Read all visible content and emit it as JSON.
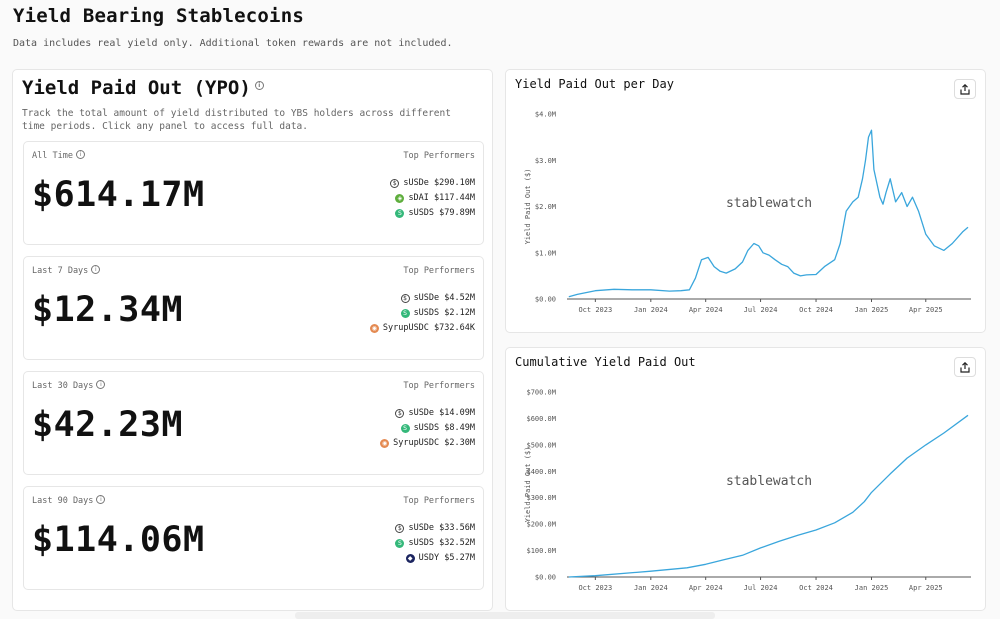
{
  "page": {
    "title": "Yield Bearing Stablecoins",
    "subtitle": "Data includes real yield only. Additional token rewards are not included."
  },
  "ypo": {
    "title": "Yield Paid Out (YPO)",
    "description": "Track the total amount of yield distributed to YBS holders across different time periods. Click any panel to access full data.",
    "info_glyph": "i",
    "top_label": "Top Performers",
    "panels": [
      {
        "label": "All Time",
        "value": "$614.17M",
        "performers": [
          {
            "name": "sUSDe",
            "amount": "$290.10M",
            "icon": "susde",
            "glyph": "$"
          },
          {
            "name": "sDAI",
            "amount": "$117.44M",
            "icon": "sdai",
            "glyph": "◈"
          },
          {
            "name": "sUSDS",
            "amount": "$79.89M",
            "icon": "susds",
            "glyph": "S"
          }
        ]
      },
      {
        "label": "Last 7 Days",
        "value": "$12.34M",
        "performers": [
          {
            "name": "sUSDe",
            "amount": "$4.52M",
            "icon": "susde",
            "glyph": "$"
          },
          {
            "name": "sUSDS",
            "amount": "$2.12M",
            "icon": "susds",
            "glyph": "S"
          },
          {
            "name": "SyrupUSDC",
            "amount": "$732.64K",
            "icon": "syrup",
            "glyph": "◉"
          }
        ]
      },
      {
        "label": "Last 30 Days",
        "value": "$42.23M",
        "performers": [
          {
            "name": "sUSDe",
            "amount": "$14.09M",
            "icon": "susde",
            "glyph": "$"
          },
          {
            "name": "sUSDS",
            "amount": "$8.49M",
            "icon": "susds",
            "glyph": "S"
          },
          {
            "name": "SyrupUSDC",
            "amount": "$2.30M",
            "icon": "syrup",
            "glyph": "◉"
          }
        ]
      },
      {
        "label": "Last 90 Days",
        "value": "$114.06M",
        "performers": [
          {
            "name": "sUSDe",
            "amount": "$33.56M",
            "icon": "susde",
            "glyph": "$"
          },
          {
            "name": "sUSDS",
            "amount": "$32.52M",
            "icon": "susds",
            "glyph": "S"
          },
          {
            "name": "USDY",
            "amount": "$5.27M",
            "icon": "usdy",
            "glyph": "◆"
          }
        ]
      }
    ]
  },
  "colors": {
    "line": "#3aa6dc",
    "susde": "#444444",
    "sdai": "#5fae3d",
    "susds": "#34b87a",
    "syrup": "#e48a52",
    "usdy": "#1c2560"
  },
  "icons": {
    "share": "share-icon",
    "info": "info-icon"
  },
  "chart_data": [
    {
      "type": "line",
      "title": "Yield Paid Out per Day",
      "ylabel": "Yield Paid Out ($)",
      "watermark": "stablewatch",
      "ylim": [
        0,
        4000000
      ],
      "y_ticks": [
        0,
        1000000,
        2000000,
        3000000,
        4000000
      ],
      "y_tick_labels": [
        "$0.00",
        "$1.0M",
        "$2.0M",
        "$3.0M",
        "$4.0M"
      ],
      "xlim": [
        "2023-08-15",
        "2025-06-15"
      ],
      "x_ticks": [
        "2023-10-01",
        "2024-01-01",
        "2024-04-01",
        "2024-07-01",
        "2024-10-01",
        "2025-01-01",
        "2025-04-01"
      ],
      "x_tick_labels": [
        "Oct 2023",
        "Jan 2024",
        "Apr 2024",
        "Jul 2024",
        "Oct 2024",
        "Jan 2025",
        "Apr 2025"
      ],
      "grid": false,
      "series": [
        {
          "x": [
            "2023-08-18",
            "2023-09-01",
            "2023-10-01",
            "2023-11-01",
            "2023-12-01",
            "2024-01-01",
            "2024-02-01",
            "2024-02-20",
            "2024-03-05",
            "2024-03-15",
            "2024-03-25",
            "2024-04-05",
            "2024-04-15",
            "2024-04-25",
            "2024-05-05",
            "2024-05-20",
            "2024-06-01",
            "2024-06-10",
            "2024-06-20",
            "2024-06-28",
            "2024-07-05",
            "2024-07-15",
            "2024-07-25",
            "2024-08-05",
            "2024-08-15",
            "2024-08-25",
            "2024-09-05",
            "2024-09-15",
            "2024-10-01",
            "2024-10-15",
            "2024-11-01",
            "2024-11-10",
            "2024-11-20",
            "2024-12-01",
            "2024-12-10",
            "2024-12-17",
            "2024-12-22",
            "2024-12-27",
            "2025-01-01",
            "2025-01-05",
            "2025-01-10",
            "2025-01-15",
            "2025-01-20",
            "2025-01-25",
            "2025-02-01",
            "2025-02-10",
            "2025-02-20",
            "2025-03-01",
            "2025-03-10",
            "2025-03-20",
            "2025-04-01",
            "2025-04-15",
            "2025-05-01",
            "2025-05-15",
            "2025-06-01",
            "2025-06-10"
          ],
          "y": [
            50000,
            100000,
            180000,
            210000,
            200000,
            200000,
            170000,
            180000,
            200000,
            450000,
            850000,
            900000,
            700000,
            600000,
            560000,
            650000,
            800000,
            1050000,
            1200000,
            1150000,
            1000000,
            950000,
            850000,
            750000,
            700000,
            560000,
            500000,
            520000,
            530000,
            700000,
            850000,
            1200000,
            1900000,
            2100000,
            2200000,
            2600000,
            3000000,
            3500000,
            3650000,
            2800000,
            2500000,
            2200000,
            2050000,
            2300000,
            2600000,
            2100000,
            2300000,
            2000000,
            2200000,
            1900000,
            1400000,
            1150000,
            1050000,
            1200000,
            1450000,
            1550000
          ]
        }
      ]
    },
    {
      "type": "line",
      "title": "Cumulative Yield Paid Out",
      "ylabel": "Yield Paid Out ($)",
      "watermark": "stablewatch",
      "ylim": [
        0,
        700000000
      ],
      "y_ticks": [
        0,
        100000000,
        200000000,
        300000000,
        400000000,
        500000000,
        600000000,
        700000000
      ],
      "y_tick_labels": [
        "$0.00",
        "$100.0M",
        "$200.0M",
        "$300.0M",
        "$400.0M",
        "$500.0M",
        "$600.0M",
        "$700.0M"
      ],
      "xlim": [
        "2023-08-15",
        "2025-06-15"
      ],
      "x_ticks": [
        "2023-10-01",
        "2024-01-01",
        "2024-04-01",
        "2024-07-01",
        "2024-10-01",
        "2025-01-01",
        "2025-04-01"
      ],
      "x_tick_labels": [
        "Oct 2023",
        "Jan 2024",
        "Apr 2024",
        "Jul 2024",
        "Oct 2024",
        "Jan 2025",
        "Apr 2025"
      ],
      "grid": false,
      "series": [
        {
          "x": [
            "2023-08-18",
            "2023-10-01",
            "2024-01-01",
            "2024-03-01",
            "2024-04-01",
            "2024-05-01",
            "2024-06-01",
            "2024-07-01",
            "2024-08-01",
            "2024-09-01",
            "2024-10-01",
            "2024-11-01",
            "2024-12-01",
            "2024-12-20",
            "2025-01-01",
            "2025-02-01",
            "2025-03-01",
            "2025-04-01",
            "2025-05-01",
            "2025-06-10"
          ],
          "y": [
            0,
            5000000,
            22000000,
            35000000,
            48000000,
            65000000,
            82000000,
            110000000,
            135000000,
            158000000,
            178000000,
            205000000,
            245000000,
            285000000,
            320000000,
            390000000,
            450000000,
            500000000,
            545000000,
            612000000
          ]
        }
      ]
    }
  ]
}
